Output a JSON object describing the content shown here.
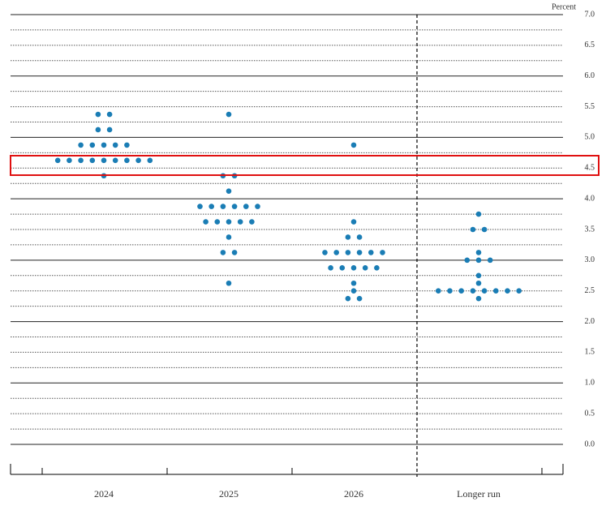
{
  "chart_data": {
    "type": "dot",
    "y_axis_label": "Percent",
    "categories": [
      "2024",
      "2025",
      "2026",
      "Longer run"
    ],
    "dots": [
      [
        5.375,
        5.375,
        5.125,
        5.125,
        4.875,
        4.875,
        4.875,
        4.875,
        4.875,
        4.625,
        4.625,
        4.625,
        4.625,
        4.625,
        4.625,
        4.625,
        4.625,
        4.625,
        4.375
      ],
      [
        5.375,
        4.375,
        4.375,
        4.125,
        3.875,
        3.875,
        3.875,
        3.875,
        3.875,
        3.875,
        3.625,
        3.625,
        3.625,
        3.625,
        3.625,
        3.375,
        3.125,
        3.125,
        2.625
      ],
      [
        4.875,
        3.625,
        3.375,
        3.375,
        3.125,
        3.125,
        3.125,
        3.125,
        3.125,
        3.125,
        2.875,
        2.875,
        2.875,
        2.875,
        2.875,
        2.625,
        2.5,
        2.375,
        2.375
      ],
      [
        3.75,
        3.5,
        3.5,
        3.125,
        3.0,
        3.0,
        3.0,
        2.75,
        2.625,
        2.5,
        2.5,
        2.5,
        2.5,
        2.5,
        2.5,
        2.5,
        2.5,
        2.375
      ]
    ],
    "color": "#1a7db5",
    "ylim": [
      0,
      7
    ],
    "yticks": [
      {
        "value": 0,
        "label": "0.0"
      },
      {
        "value": 0.5,
        "label": "0.5"
      },
      {
        "value": 1,
        "label": "1.0"
      },
      {
        "value": 1.5,
        "label": "1.5"
      },
      {
        "value": 2,
        "label": "2.0"
      },
      {
        "value": 2.5,
        "label": "2.5"
      },
      {
        "value": 3,
        "label": "3.0"
      },
      {
        "value": 3.5,
        "label": "3.5"
      },
      {
        "value": 4,
        "label": "4.0"
      },
      {
        "value": 4.5,
        "label": "4.5"
      },
      {
        "value": 5,
        "label": "5.0"
      },
      {
        "value": 5.5,
        "label": "5.5"
      },
      {
        "value": 6,
        "label": "6.0"
      },
      {
        "value": 6.5,
        "label": "6.5"
      },
      {
        "value": 7,
        "label": "7.0"
      }
    ],
    "minor_yticks": [
      0.25,
      0.75,
      1.25,
      1.75,
      2.25,
      2.75,
      3.25,
      3.75,
      4.25,
      4.75,
      5.25,
      5.75,
      6.25,
      6.75
    ],
    "grid": true
  }
}
